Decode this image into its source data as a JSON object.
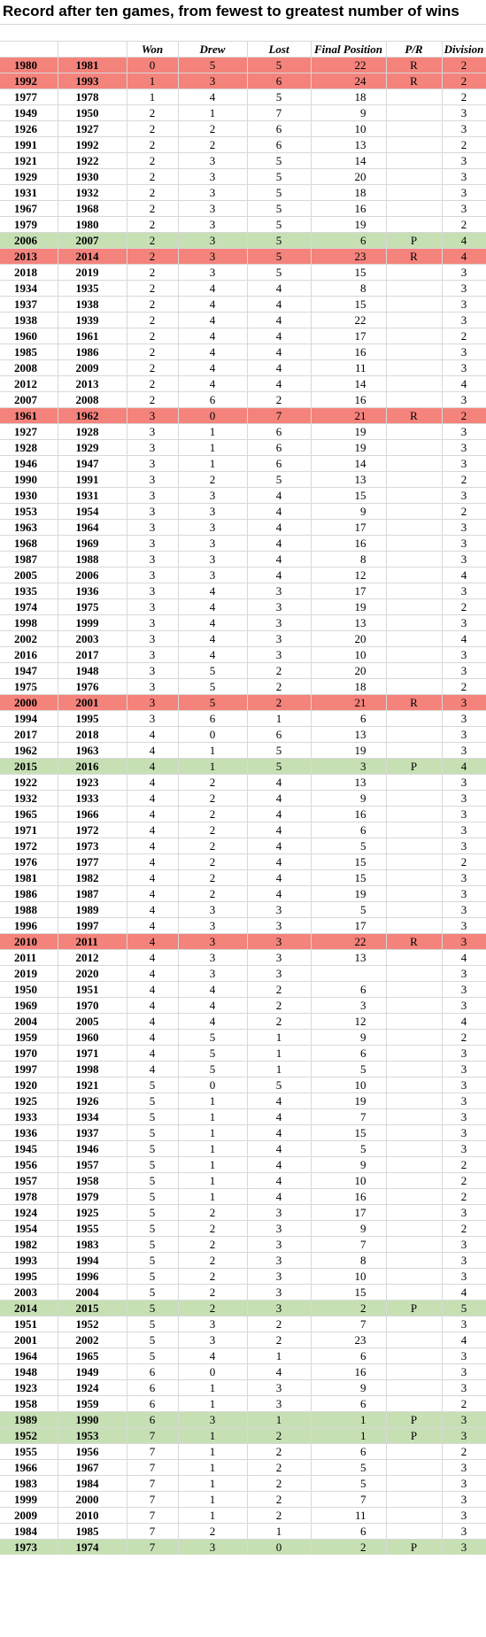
{
  "title": "Record after ten games, from fewest to greatest number of wins",
  "headers": [
    "",
    "",
    "Won",
    "Drew",
    "Lost",
    "Final Position",
    "P/R",
    "Division"
  ],
  "colors": {
    "relegated": "#f4837c",
    "promoted": "#c6e0b4",
    "gridline": "#d8d8d8"
  },
  "rows": [
    {
      "s": "1980",
      "e": "1981",
      "w": "0",
      "d": "5",
      "l": "5",
      "fp": "22",
      "pr": "R",
      "div": "2",
      "hl": "rel"
    },
    {
      "s": "1992",
      "e": "1993",
      "w": "1",
      "d": "3",
      "l": "6",
      "fp": "24",
      "pr": "R",
      "div": "2",
      "hl": "rel"
    },
    {
      "s": "1977",
      "e": "1978",
      "w": "1",
      "d": "4",
      "l": "5",
      "fp": "18",
      "pr": "",
      "div": "2",
      "hl": ""
    },
    {
      "s": "1949",
      "e": "1950",
      "w": "2",
      "d": "1",
      "l": "7",
      "fp": "9",
      "pr": "",
      "div": "3",
      "hl": ""
    },
    {
      "s": "1926",
      "e": "1927",
      "w": "2",
      "d": "2",
      "l": "6",
      "fp": "10",
      "pr": "",
      "div": "3",
      "hl": ""
    },
    {
      "s": "1991",
      "e": "1992",
      "w": "2",
      "d": "2",
      "l": "6",
      "fp": "13",
      "pr": "",
      "div": "2",
      "hl": ""
    },
    {
      "s": "1921",
      "e": "1922",
      "w": "2",
      "d": "3",
      "l": "5",
      "fp": "14",
      "pr": "",
      "div": "3",
      "hl": ""
    },
    {
      "s": "1929",
      "e": "1930",
      "w": "2",
      "d": "3",
      "l": "5",
      "fp": "20",
      "pr": "",
      "div": "3",
      "hl": ""
    },
    {
      "s": "1931",
      "e": "1932",
      "w": "2",
      "d": "3",
      "l": "5",
      "fp": "18",
      "pr": "",
      "div": "3",
      "hl": ""
    },
    {
      "s": "1967",
      "e": "1968",
      "w": "2",
      "d": "3",
      "l": "5",
      "fp": "16",
      "pr": "",
      "div": "3",
      "hl": ""
    },
    {
      "s": "1979",
      "e": "1980",
      "w": "2",
      "d": "3",
      "l": "5",
      "fp": "19",
      "pr": "",
      "div": "2",
      "hl": ""
    },
    {
      "s": "2006",
      "e": "2007",
      "w": "2",
      "d": "3",
      "l": "5",
      "fp": "6",
      "pr": "P",
      "div": "4",
      "hl": "pro"
    },
    {
      "s": "2013",
      "e": "2014",
      "w": "2",
      "d": "3",
      "l": "5",
      "fp": "23",
      "pr": "R",
      "div": "4",
      "hl": "rel"
    },
    {
      "s": "2018",
      "e": "2019",
      "w": "2",
      "d": "3",
      "l": "5",
      "fp": "15",
      "pr": "",
      "div": "3",
      "hl": ""
    },
    {
      "s": "1934",
      "e": "1935",
      "w": "2",
      "d": "4",
      "l": "4",
      "fp": "8",
      "pr": "",
      "div": "3",
      "hl": ""
    },
    {
      "s": "1937",
      "e": "1938",
      "w": "2",
      "d": "4",
      "l": "4",
      "fp": "15",
      "pr": "",
      "div": "3",
      "hl": ""
    },
    {
      "s": "1938",
      "e": "1939",
      "w": "2",
      "d": "4",
      "l": "4",
      "fp": "22",
      "pr": "",
      "div": "3",
      "hl": ""
    },
    {
      "s": "1960",
      "e": "1961",
      "w": "2",
      "d": "4",
      "l": "4",
      "fp": "17",
      "pr": "",
      "div": "2",
      "hl": ""
    },
    {
      "s": "1985",
      "e": "1986",
      "w": "2",
      "d": "4",
      "l": "4",
      "fp": "16",
      "pr": "",
      "div": "3",
      "hl": ""
    },
    {
      "s": "2008",
      "e": "2009",
      "w": "2",
      "d": "4",
      "l": "4",
      "fp": "11",
      "pr": "",
      "div": "3",
      "hl": ""
    },
    {
      "s": "2012",
      "e": "2013",
      "w": "2",
      "d": "4",
      "l": "4",
      "fp": "14",
      "pr": "",
      "div": "4",
      "hl": ""
    },
    {
      "s": "2007",
      "e": "2008",
      "w": "2",
      "d": "6",
      "l": "2",
      "fp": "16",
      "pr": "",
      "div": "3",
      "hl": ""
    },
    {
      "s": "1961",
      "e": "1962",
      "w": "3",
      "d": "0",
      "l": "7",
      "fp": "21",
      "pr": "R",
      "div": "2",
      "hl": "rel"
    },
    {
      "s": "1927",
      "e": "1928",
      "w": "3",
      "d": "1",
      "l": "6",
      "fp": "19",
      "pr": "",
      "div": "3",
      "hl": ""
    },
    {
      "s": "1928",
      "e": "1929",
      "w": "3",
      "d": "1",
      "l": "6",
      "fp": "19",
      "pr": "",
      "div": "3",
      "hl": ""
    },
    {
      "s": "1946",
      "e": "1947",
      "w": "3",
      "d": "1",
      "l": "6",
      "fp": "14",
      "pr": "",
      "div": "3",
      "hl": ""
    },
    {
      "s": "1990",
      "e": "1991",
      "w": "3",
      "d": "2",
      "l": "5",
      "fp": "13",
      "pr": "",
      "div": "2",
      "hl": ""
    },
    {
      "s": "1930",
      "e": "1931",
      "w": "3",
      "d": "3",
      "l": "4",
      "fp": "15",
      "pr": "",
      "div": "3",
      "hl": ""
    },
    {
      "s": "1953",
      "e": "1954",
      "w": "3",
      "d": "3",
      "l": "4",
      "fp": "9",
      "pr": "",
      "div": "2",
      "hl": ""
    },
    {
      "s": "1963",
      "e": "1964",
      "w": "3",
      "d": "3",
      "l": "4",
      "fp": "17",
      "pr": "",
      "div": "3",
      "hl": ""
    },
    {
      "s": "1968",
      "e": "1969",
      "w": "3",
      "d": "3",
      "l": "4",
      "fp": "16",
      "pr": "",
      "div": "3",
      "hl": ""
    },
    {
      "s": "1987",
      "e": "1988",
      "w": "3",
      "d": "3",
      "l": "4",
      "fp": "8",
      "pr": "",
      "div": "3",
      "hl": ""
    },
    {
      "s": "2005",
      "e": "2006",
      "w": "3",
      "d": "3",
      "l": "4",
      "fp": "12",
      "pr": "",
      "div": "4",
      "hl": ""
    },
    {
      "s": "1935",
      "e": "1936",
      "w": "3",
      "d": "4",
      "l": "3",
      "fp": "17",
      "pr": "",
      "div": "3",
      "hl": ""
    },
    {
      "s": "1974",
      "e": "1975",
      "w": "3",
      "d": "4",
      "l": "3",
      "fp": "19",
      "pr": "",
      "div": "2",
      "hl": ""
    },
    {
      "s": "1998",
      "e": "1999",
      "w": "3",
      "d": "4",
      "l": "3",
      "fp": "13",
      "pr": "",
      "div": "3",
      "hl": ""
    },
    {
      "s": "2002",
      "e": "2003",
      "w": "3",
      "d": "4",
      "l": "3",
      "fp": "20",
      "pr": "",
      "div": "4",
      "hl": ""
    },
    {
      "s": "2016",
      "e": "2017",
      "w": "3",
      "d": "4",
      "l": "3",
      "fp": "10",
      "pr": "",
      "div": "3",
      "hl": ""
    },
    {
      "s": "1947",
      "e": "1948",
      "w": "3",
      "d": "5",
      "l": "2",
      "fp": "20",
      "pr": "",
      "div": "3",
      "hl": ""
    },
    {
      "s": "1975",
      "e": "1976",
      "w": "3",
      "d": "5",
      "l": "2",
      "fp": "18",
      "pr": "",
      "div": "2",
      "hl": ""
    },
    {
      "s": "2000",
      "e": "2001",
      "w": "3",
      "d": "5",
      "l": "2",
      "fp": "21",
      "pr": "R",
      "div": "3",
      "hl": "rel"
    },
    {
      "s": "1994",
      "e": "1995",
      "w": "3",
      "d": "6",
      "l": "1",
      "fp": "6",
      "pr": "",
      "div": "3",
      "hl": ""
    },
    {
      "s": "2017",
      "e": "2018",
      "w": "4",
      "d": "0",
      "l": "6",
      "fp": "13",
      "pr": "",
      "div": "3",
      "hl": ""
    },
    {
      "s": "1962",
      "e": "1963",
      "w": "4",
      "d": "1",
      "l": "5",
      "fp": "19",
      "pr": "",
      "div": "3",
      "hl": ""
    },
    {
      "s": "2015",
      "e": "2016",
      "w": "4",
      "d": "1",
      "l": "5",
      "fp": "3",
      "pr": "P",
      "div": "4",
      "hl": "pro"
    },
    {
      "s": "1922",
      "e": "1923",
      "w": "4",
      "d": "2",
      "l": "4",
      "fp": "13",
      "pr": "",
      "div": "3",
      "hl": ""
    },
    {
      "s": "1932",
      "e": "1933",
      "w": "4",
      "d": "2",
      "l": "4",
      "fp": "9",
      "pr": "",
      "div": "3",
      "hl": ""
    },
    {
      "s": "1965",
      "e": "1966",
      "w": "4",
      "d": "2",
      "l": "4",
      "fp": "16",
      "pr": "",
      "div": "3",
      "hl": ""
    },
    {
      "s": "1971",
      "e": "1972",
      "w": "4",
      "d": "2",
      "l": "4",
      "fp": "6",
      "pr": "",
      "div": "3",
      "hl": ""
    },
    {
      "s": "1972",
      "e": "1973",
      "w": "4",
      "d": "2",
      "l": "4",
      "fp": "5",
      "pr": "",
      "div": "3",
      "hl": ""
    },
    {
      "s": "1976",
      "e": "1977",
      "w": "4",
      "d": "2",
      "l": "4",
      "fp": "15",
      "pr": "",
      "div": "2",
      "hl": ""
    },
    {
      "s": "1981",
      "e": "1982",
      "w": "4",
      "d": "2",
      "l": "4",
      "fp": "15",
      "pr": "",
      "div": "3",
      "hl": ""
    },
    {
      "s": "1986",
      "e": "1987",
      "w": "4",
      "d": "2",
      "l": "4",
      "fp": "19",
      "pr": "",
      "div": "3",
      "hl": ""
    },
    {
      "s": "1988",
      "e": "1989",
      "w": "4",
      "d": "3",
      "l": "3",
      "fp": "5",
      "pr": "",
      "div": "3",
      "hl": ""
    },
    {
      "s": "1996",
      "e": "1997",
      "w": "4",
      "d": "3",
      "l": "3",
      "fp": "17",
      "pr": "",
      "div": "3",
      "hl": ""
    },
    {
      "s": "2010",
      "e": "2011",
      "w": "4",
      "d": "3",
      "l": "3",
      "fp": "22",
      "pr": "R",
      "div": "3",
      "hl": "rel"
    },
    {
      "s": "2011",
      "e": "2012",
      "w": "4",
      "d": "3",
      "l": "3",
      "fp": "13",
      "pr": "",
      "div": "4",
      "hl": ""
    },
    {
      "s": "2019",
      "e": "2020",
      "w": "4",
      "d": "3",
      "l": "3",
      "fp": "",
      "pr": "",
      "div": "3",
      "hl": ""
    },
    {
      "s": "1950",
      "e": "1951",
      "w": "4",
      "d": "4",
      "l": "2",
      "fp": "6",
      "pr": "",
      "div": "3",
      "hl": ""
    },
    {
      "s": "1969",
      "e": "1970",
      "w": "4",
      "d": "4",
      "l": "2",
      "fp": "3",
      "pr": "",
      "div": "3",
      "hl": ""
    },
    {
      "s": "2004",
      "e": "2005",
      "w": "4",
      "d": "4",
      "l": "2",
      "fp": "12",
      "pr": "",
      "div": "4",
      "hl": ""
    },
    {
      "s": "1959",
      "e": "1960",
      "w": "4",
      "d": "5",
      "l": "1",
      "fp": "9",
      "pr": "",
      "div": "2",
      "hl": ""
    },
    {
      "s": "1970",
      "e": "1971",
      "w": "4",
      "d": "5",
      "l": "1",
      "fp": "6",
      "pr": "",
      "div": "3",
      "hl": ""
    },
    {
      "s": "1997",
      "e": "1998",
      "w": "4",
      "d": "5",
      "l": "1",
      "fp": "5",
      "pr": "",
      "div": "3",
      "hl": ""
    },
    {
      "s": "1920",
      "e": "1921",
      "w": "5",
      "d": "0",
      "l": "5",
      "fp": "10",
      "pr": "",
      "div": "3",
      "hl": ""
    },
    {
      "s": "1925",
      "e": "1926",
      "w": "5",
      "d": "1",
      "l": "4",
      "fp": "19",
      "pr": "",
      "div": "3",
      "hl": ""
    },
    {
      "s": "1933",
      "e": "1934",
      "w": "5",
      "d": "1",
      "l": "4",
      "fp": "7",
      "pr": "",
      "div": "3",
      "hl": ""
    },
    {
      "s": "1936",
      "e": "1937",
      "w": "5",
      "d": "1",
      "l": "4",
      "fp": "15",
      "pr": "",
      "div": "3",
      "hl": ""
    },
    {
      "s": "1945",
      "e": "1946",
      "w": "5",
      "d": "1",
      "l": "4",
      "fp": "5",
      "pr": "",
      "div": "3",
      "hl": ""
    },
    {
      "s": "1956",
      "e": "1957",
      "w": "5",
      "d": "1",
      "l": "4",
      "fp": "9",
      "pr": "",
      "div": "2",
      "hl": ""
    },
    {
      "s": "1957",
      "e": "1958",
      "w": "5",
      "d": "1",
      "l": "4",
      "fp": "10",
      "pr": "",
      "div": "2",
      "hl": ""
    },
    {
      "s": "1978",
      "e": "1979",
      "w": "5",
      "d": "1",
      "l": "4",
      "fp": "16",
      "pr": "",
      "div": "2",
      "hl": ""
    },
    {
      "s": "1924",
      "e": "1925",
      "w": "5",
      "d": "2",
      "l": "3",
      "fp": "17",
      "pr": "",
      "div": "3",
      "hl": ""
    },
    {
      "s": "1954",
      "e": "1955",
      "w": "5",
      "d": "2",
      "l": "3",
      "fp": "9",
      "pr": "",
      "div": "2",
      "hl": ""
    },
    {
      "s": "1982",
      "e": "1983",
      "w": "5",
      "d": "2",
      "l": "3",
      "fp": "7",
      "pr": "",
      "div": "3",
      "hl": ""
    },
    {
      "s": "1993",
      "e": "1994",
      "w": "5",
      "d": "2",
      "l": "3",
      "fp": "8",
      "pr": "",
      "div": "3",
      "hl": ""
    },
    {
      "s": "1995",
      "e": "1996",
      "w": "5",
      "d": "2",
      "l": "3",
      "fp": "10",
      "pr": "",
      "div": "3",
      "hl": ""
    },
    {
      "s": "2003",
      "e": "2004",
      "w": "5",
      "d": "2",
      "l": "3",
      "fp": "15",
      "pr": "",
      "div": "4",
      "hl": ""
    },
    {
      "s": "2014",
      "e": "2015",
      "w": "5",
      "d": "2",
      "l": "3",
      "fp": "2",
      "pr": "P",
      "div": "5",
      "hl": "pro"
    },
    {
      "s": "1951",
      "e": "1952",
      "w": "5",
      "d": "3",
      "l": "2",
      "fp": "7",
      "pr": "",
      "div": "3",
      "hl": ""
    },
    {
      "s": "2001",
      "e": "2002",
      "w": "5",
      "d": "3",
      "l": "2",
      "fp": "23",
      "pr": "",
      "div": "4",
      "hl": ""
    },
    {
      "s": "1964",
      "e": "1965",
      "w": "5",
      "d": "4",
      "l": "1",
      "fp": "6",
      "pr": "",
      "div": "3",
      "hl": ""
    },
    {
      "s": "1948",
      "e": "1949",
      "w": "6",
      "d": "0",
      "l": "4",
      "fp": "16",
      "pr": "",
      "div": "3",
      "hl": ""
    },
    {
      "s": "1923",
      "e": "1924",
      "w": "6",
      "d": "1",
      "l": "3",
      "fp": "9",
      "pr": "",
      "div": "3",
      "hl": ""
    },
    {
      "s": "1958",
      "e": "1959",
      "w": "6",
      "d": "1",
      "l": "3",
      "fp": "6",
      "pr": "",
      "div": "2",
      "hl": ""
    },
    {
      "s": "1989",
      "e": "1990",
      "w": "6",
      "d": "3",
      "l": "1",
      "fp": "1",
      "pr": "P",
      "div": "3",
      "hl": "pro"
    },
    {
      "s": "1952",
      "e": "1953",
      "w": "7",
      "d": "1",
      "l": "2",
      "fp": "1",
      "pr": "P",
      "div": "3",
      "hl": "pro"
    },
    {
      "s": "1955",
      "e": "1956",
      "w": "7",
      "d": "1",
      "l": "2",
      "fp": "6",
      "pr": "",
      "div": "2",
      "hl": ""
    },
    {
      "s": "1966",
      "e": "1967",
      "w": "7",
      "d": "1",
      "l": "2",
      "fp": "5",
      "pr": "",
      "div": "3",
      "hl": ""
    },
    {
      "s": "1983",
      "e": "1984",
      "w": "7",
      "d": "1",
      "l": "2",
      "fp": "5",
      "pr": "",
      "div": "3",
      "hl": ""
    },
    {
      "s": "1999",
      "e": "2000",
      "w": "7",
      "d": "1",
      "l": "2",
      "fp": "7",
      "pr": "",
      "div": "3",
      "hl": ""
    },
    {
      "s": "2009",
      "e": "2010",
      "w": "7",
      "d": "1",
      "l": "2",
      "fp": "11",
      "pr": "",
      "div": "3",
      "hl": ""
    },
    {
      "s": "1984",
      "e": "1985",
      "w": "7",
      "d": "2",
      "l": "1",
      "fp": "6",
      "pr": "",
      "div": "3",
      "hl": ""
    },
    {
      "s": "1973",
      "e": "1974",
      "w": "7",
      "d": "3",
      "l": "0",
      "fp": "2",
      "pr": "P",
      "div": "3",
      "hl": "pro"
    }
  ]
}
